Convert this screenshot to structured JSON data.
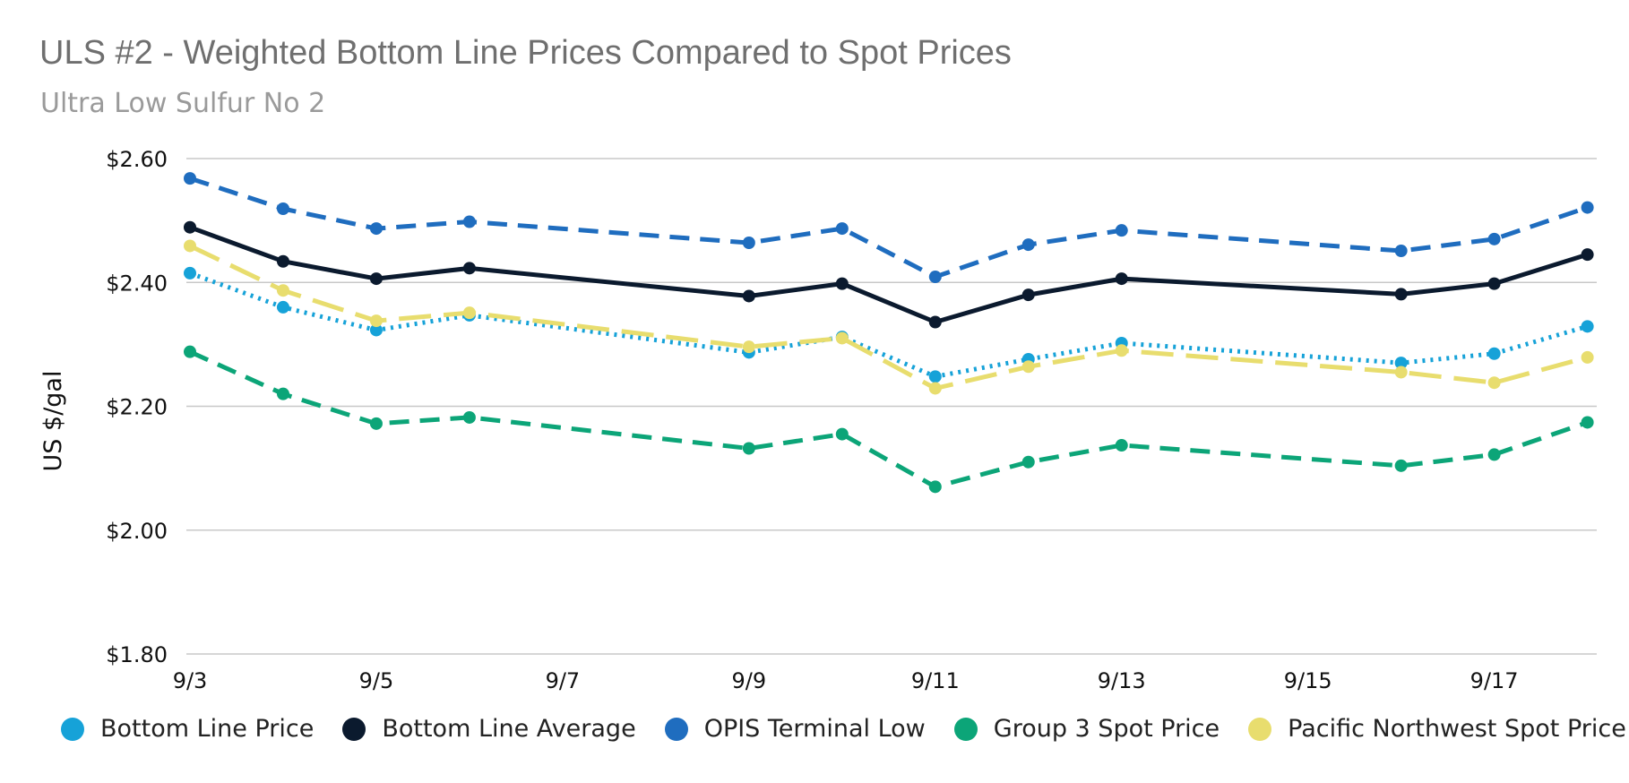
{
  "chart_data": {
    "type": "line",
    "title": "ULS #2 - Weighted Bottom Line Prices Compared to Spot Prices",
    "subtitle": "Ultra Low Sulfur No 2",
    "ylabel": "US $/gal",
    "xlabel": "",
    "ylim": [
      1.8,
      2.6
    ],
    "yticks": [
      1.8,
      2.0,
      2.2,
      2.4,
      2.6
    ],
    "ytick_labels": [
      "$1.80",
      "$2.00",
      "$2.20",
      "$2.40",
      "$2.60"
    ],
    "xlim": [
      3,
      18.1
    ],
    "xticks": [
      3,
      5,
      7,
      9,
      11,
      13,
      15,
      17
    ],
    "xtick_labels": [
      "9/3",
      "9/5",
      "9/7",
      "9/9",
      "9/11",
      "9/13",
      "9/15",
      "9/17"
    ],
    "x": [
      3,
      4,
      5,
      6,
      9,
      10,
      11,
      12,
      13,
      16,
      17,
      18
    ],
    "grid": true,
    "legend_position": "bottom",
    "series": [
      {
        "name": "Bottom Line Price",
        "color": "#16a2d8",
        "dash": "dotted",
        "values": [
          2.415,
          2.36,
          2.323,
          2.347,
          2.287,
          2.312,
          2.248,
          2.276,
          2.302,
          2.27,
          2.285,
          2.329
        ]
      },
      {
        "name": "Bottom Line Average",
        "color": "#0b1a2e",
        "dash": "solid",
        "values": [
          2.489,
          2.434,
          2.406,
          2.423,
          2.378,
          2.398,
          2.336,
          2.38,
          2.406,
          2.381,
          2.398,
          2.445
        ]
      },
      {
        "name": "OPIS Terminal Low",
        "color": "#1f6dbf",
        "dash": "dashed",
        "values": [
          2.568,
          2.519,
          2.487,
          2.498,
          2.464,
          2.487,
          2.409,
          2.461,
          2.484,
          2.451,
          2.47,
          2.521
        ]
      },
      {
        "name": "Group 3 Spot Price",
        "color": "#0ca578",
        "dash": "dashed",
        "values": [
          2.288,
          2.22,
          2.172,
          2.182,
          2.132,
          2.155,
          2.07,
          2.11,
          2.137,
          2.104,
          2.122,
          2.174
        ]
      },
      {
        "name": "Pacific Northwest Spot Price",
        "color": "#e8dd6e",
        "dash": "longdash",
        "values": [
          2.459,
          2.387,
          2.338,
          2.351,
          2.296,
          2.31,
          2.229,
          2.264,
          2.29,
          2.255,
          2.238,
          2.279
        ]
      }
    ]
  }
}
